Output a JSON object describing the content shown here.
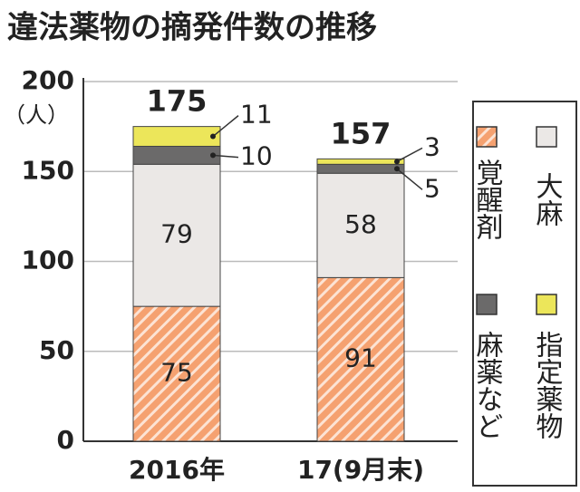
{
  "chart_data": {
    "type": "stacked_bar",
    "title": "違法薬物の摘発件数の推移",
    "y_label": "（人）",
    "categories": [
      "2016年",
      "17(9月末)"
    ],
    "series": [
      {
        "name": "覚醒剤",
        "color": "#f5a170",
        "hatch": true,
        "values": [
          75,
          91
        ]
      },
      {
        "name": "大麻",
        "color": "#ebe8e6",
        "values": [
          79,
          58
        ]
      },
      {
        "name": "麻薬など",
        "color": "#6b6a6a",
        "values": [
          10,
          5
        ]
      },
      {
        "name": "指定薬物",
        "color": "#ece65a",
        "values": [
          11,
          3
        ]
      }
    ],
    "totals": [
      175,
      157
    ],
    "ylim": [
      0,
      200
    ],
    "yticks": [
      0,
      50,
      100,
      150,
      200
    ],
    "grid": true
  }
}
